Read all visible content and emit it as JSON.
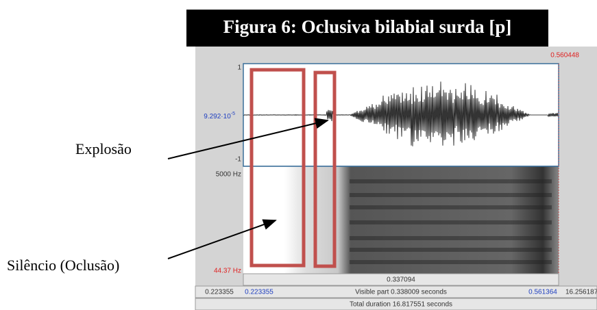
{
  "title": "Figura 6: Oclusiva bilabial surda [p]",
  "annotations": {
    "burst": "Explosão",
    "silence": "Silêncio (Oclusão)"
  },
  "praat": {
    "cursor_time": "0.560448",
    "wave_max": "1",
    "wave_mid": {
      "mantissa": "9.292·10",
      "exponent": "-5"
    },
    "wave_min": "-1",
    "freq_max": "5000 Hz",
    "freq_min": "44.37 Hz",
    "selection_duration": "0.337094",
    "window_start": "0.223355",
    "visible_start": "0.223355",
    "visible_part": "Visible part 0.338009 seconds",
    "visible_end": "0.561364",
    "window_end": "16.256187",
    "total_duration": "Total duration 16.817551 seconds"
  }
}
